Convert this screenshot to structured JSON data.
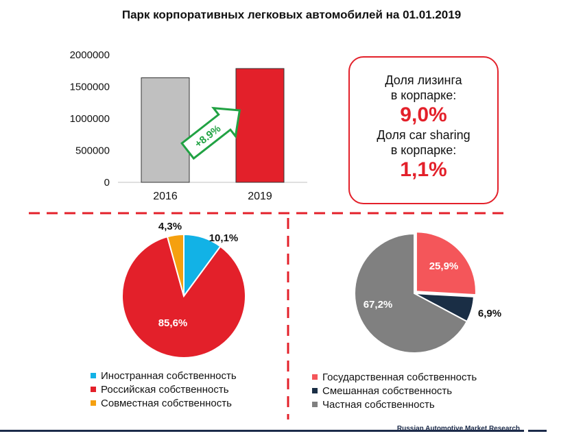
{
  "title": "Парк корпоративных легковых автомобилей на 01.01.2019",
  "chart_data": [
    {
      "type": "bar",
      "categories": [
        "2016",
        "2019"
      ],
      "values": [
        1640000,
        1785000
      ],
      "ylim": [
        0,
        2000000
      ],
      "yticks": [
        "0",
        "500000",
        "1000000",
        "1500000",
        "2000000"
      ],
      "colors": [
        "#c0c0c0",
        "#e3202a"
      ],
      "annotation": "+8.9%",
      "grid": false
    },
    {
      "type": "pie",
      "labels": [
        "Иностранная собственность",
        "Российская собственность",
        "Совместная собственность"
      ],
      "values": [
        10.1,
        85.6,
        4.3
      ],
      "value_labels": [
        "10,1%",
        "85,6%",
        "4,3%"
      ],
      "colors": [
        "#12b2e6",
        "#e3202a",
        "#f5a00f"
      ],
      "legend": "bottom"
    },
    {
      "type": "pie",
      "labels": [
        "Государственная собственность",
        "Смешанная собственность",
        "Частная собственность"
      ],
      "values": [
        25.9,
        6.9,
        67.2
      ],
      "value_labels": [
        "25,9%",
        "6,9%",
        "67,2%"
      ],
      "colors": [
        "#f4565a",
        "#1a2e45",
        "#808080"
      ],
      "legend": "bottom"
    }
  ],
  "info_box": {
    "leasing_label_1": "Доля лизинга",
    "leasing_label_2": "в корпарке:",
    "leasing_value": "9,0%",
    "carsharing_label_1": "Доля car sharing",
    "carsharing_label_2": "в корпарке:",
    "carsharing_value": "1,1%"
  },
  "footer": "Russian Automotive Market Research"
}
